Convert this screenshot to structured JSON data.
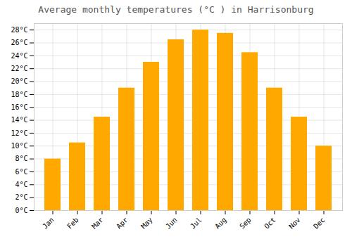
{
  "chart_data": {
    "type": "bar",
    "title": "Average monthly temperatures (°C ) in Harrisonburg",
    "categories": [
      "Jan",
      "Feb",
      "Mar",
      "Apr",
      "May",
      "Jun",
      "Jul",
      "Aug",
      "Sep",
      "Oct",
      "Nov",
      "Dec"
    ],
    "values": [
      8,
      10.5,
      14.5,
      19,
      23,
      26.5,
      28,
      27.5,
      24.5,
      19,
      14.5,
      10
    ],
    "color": "#FFA800",
    "ylim": [
      0,
      29
    ],
    "yticks": [
      {
        "value": 0,
        "label": "0°C"
      },
      {
        "value": 2,
        "label": "2°C"
      },
      {
        "value": 4,
        "label": "4°C"
      },
      {
        "value": 6,
        "label": "6°C"
      },
      {
        "value": 8,
        "label": "8°C"
      },
      {
        "value": 10,
        "label": "10°C"
      },
      {
        "value": 12,
        "label": "12°C"
      },
      {
        "value": 14,
        "label": "14°C"
      },
      {
        "value": 16,
        "label": "16°C"
      },
      {
        "value": 18,
        "label": "18°C"
      },
      {
        "value": 20,
        "label": "20°C"
      },
      {
        "value": 22,
        "label": "22°C"
      },
      {
        "value": 24,
        "label": "24°C"
      },
      {
        "value": 26,
        "label": "26°C"
      },
      {
        "value": 28,
        "label": "28°C"
      }
    ],
    "grid": true
  }
}
